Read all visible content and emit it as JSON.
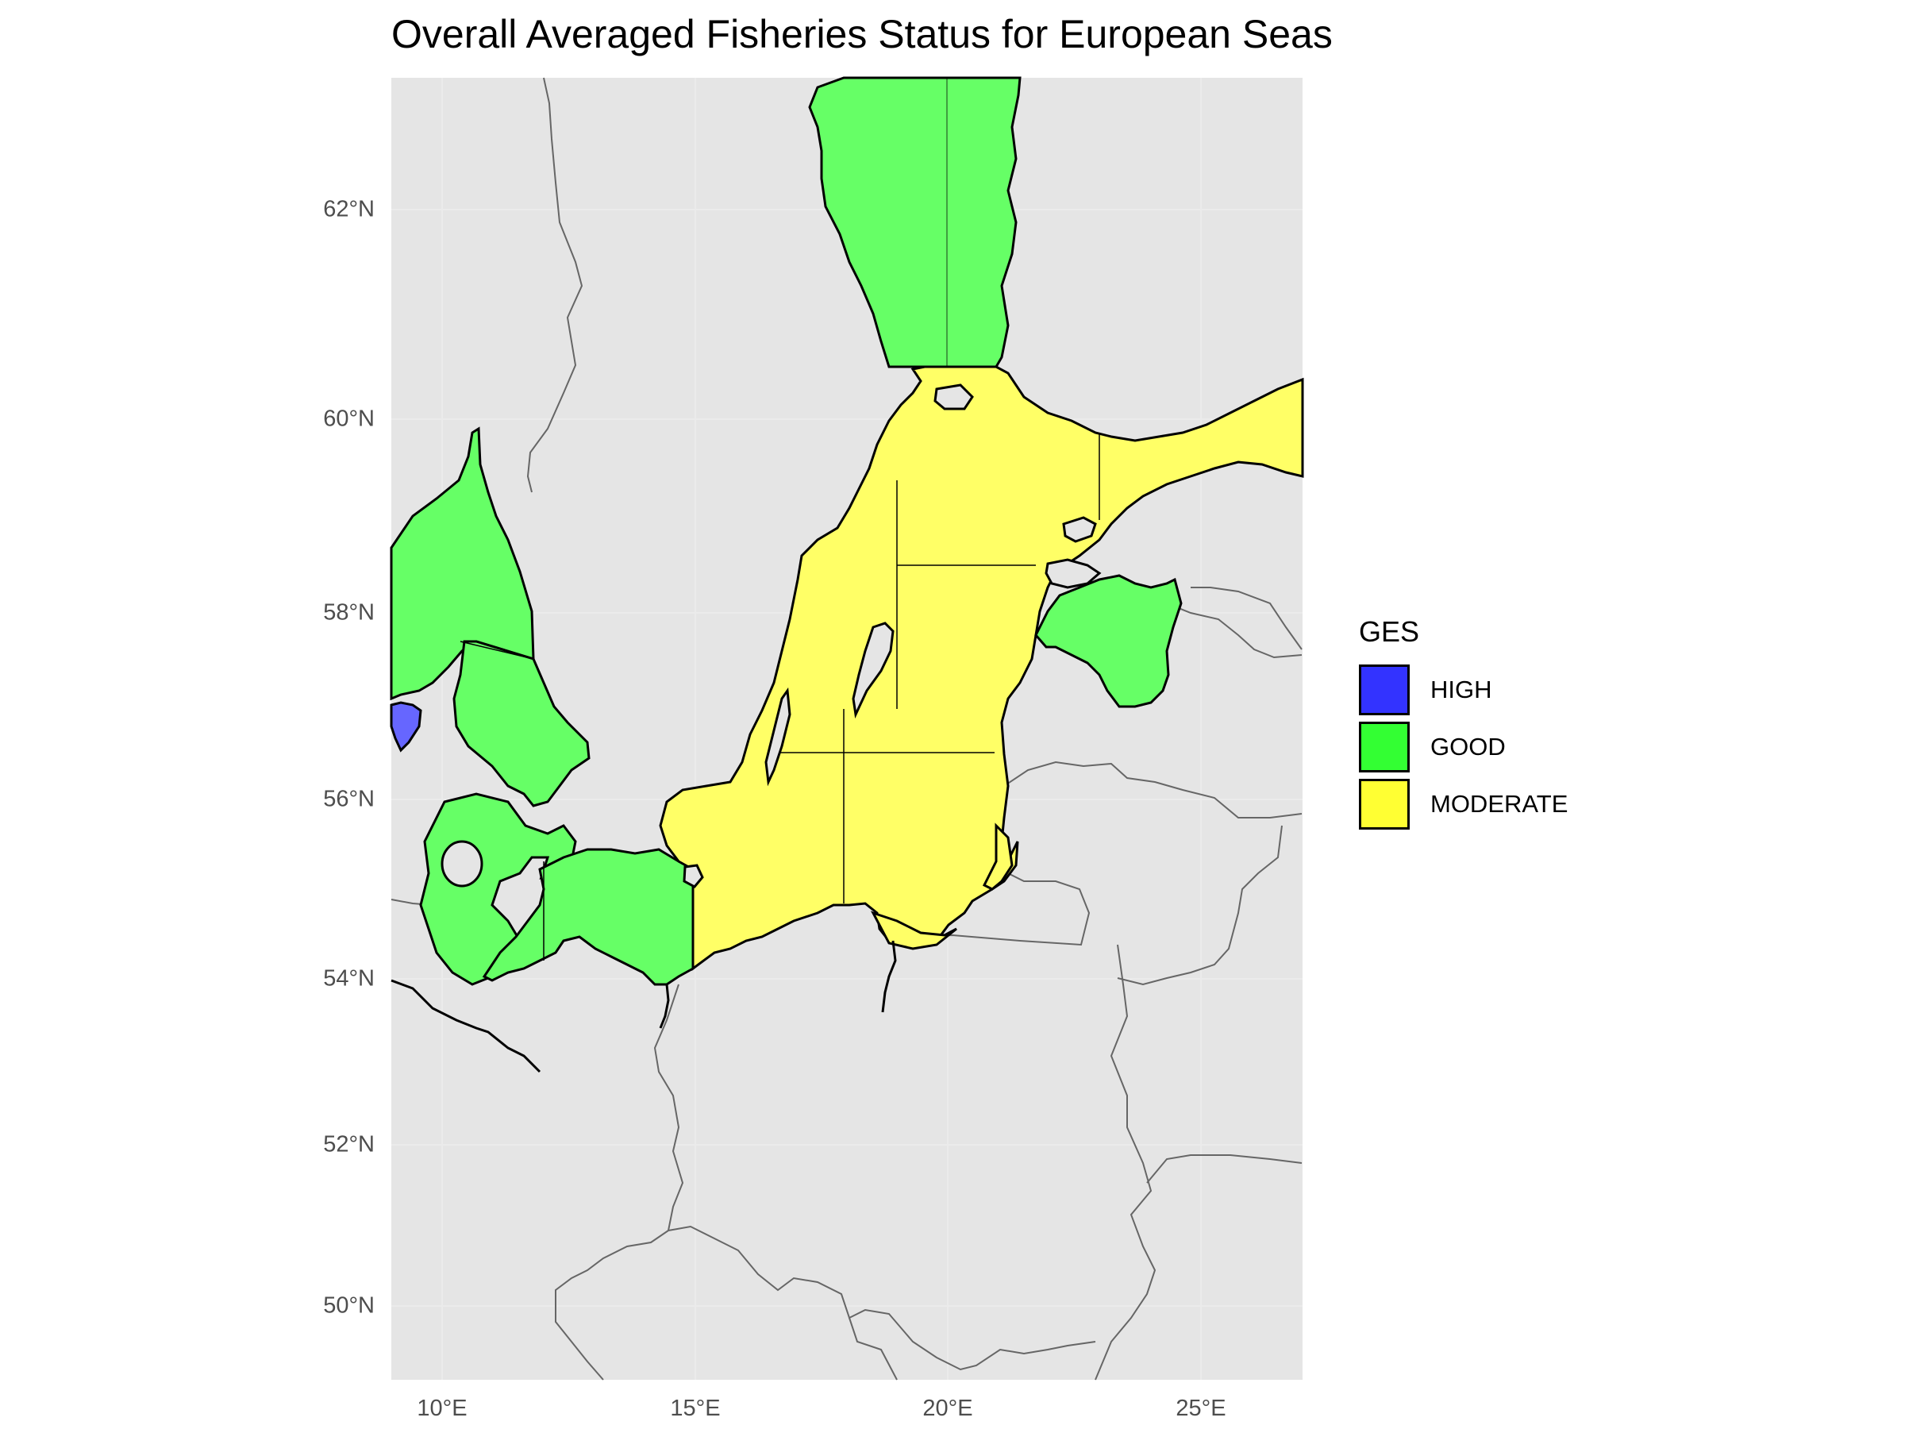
{
  "title": "Overall Averaged Fisheries Status for European Seas",
  "map": {
    "panel_background": "#e5e5e5",
    "border_color": "#666666",
    "coast_color": "#000000",
    "lat_ticks": [
      {
        "value": 62,
        "label": "62°N"
      },
      {
        "value": 60,
        "label": "60°N"
      },
      {
        "value": 58,
        "label": "58°N"
      },
      {
        "value": 56,
        "label": "56°N"
      },
      {
        "value": 54,
        "label": "54°N"
      },
      {
        "value": 52,
        "label": "52°N"
      },
      {
        "value": 50,
        "label": "50°N"
      }
    ],
    "lon_ticks": [
      {
        "value": 10,
        "label": "10°E"
      },
      {
        "value": 15,
        "label": "15°E"
      },
      {
        "value": 20,
        "label": "20°E"
      },
      {
        "value": 25,
        "label": "25°E"
      }
    ]
  },
  "legend": {
    "title": "GES",
    "items": [
      {
        "label": "HIGH",
        "color": "#3333ff"
      },
      {
        "label": "GOOD",
        "color": "#33ff33"
      },
      {
        "label": "MODERATE",
        "color": "#ffff33"
      }
    ]
  },
  "regions": {
    "good_color": "#66ff66",
    "moderate_color": "#ffff66",
    "high_color": "#6666ff"
  }
}
